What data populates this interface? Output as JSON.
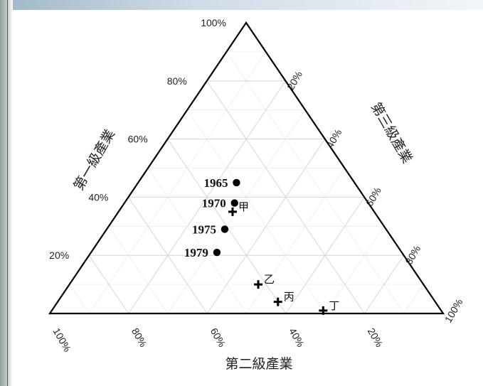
{
  "chart_data": {
    "type": "scatter",
    "subtype": "ternary",
    "title": "",
    "axes": {
      "primary": {
        "label": "第一級產業",
        "ticks": [
          "20%",
          "40%",
          "60%",
          "80%",
          "100%"
        ]
      },
      "secondary": {
        "label": "第二級產業",
        "ticks": [
          "100%",
          "80%",
          "60%",
          "40%",
          "20%"
        ]
      },
      "tertiary": {
        "label": "第三級產業",
        "ticks": [
          "20%",
          "40%",
          "60%",
          "80%",
          "100%"
        ]
      }
    },
    "grid": true,
    "series": [
      {
        "name": "",
        "marker": "dot",
        "points": [
          {
            "label": "1965",
            "primary": 45,
            "secondary": 30,
            "tertiary": 25
          },
          {
            "label": "1970",
            "primary": 38,
            "secondary": 34,
            "tertiary": 28
          },
          {
            "label": "1975",
            "primary": 29,
            "secondary": 41,
            "tertiary": 30
          },
          {
            "label": "1979",
            "primary": 21,
            "secondary": 47,
            "tertiary": 32
          }
        ]
      },
      {
        "name": "",
        "marker": "cross",
        "points": [
          {
            "label": "甲",
            "primary": 35,
            "secondary": 36,
            "tertiary": 29
          },
          {
            "label": "乙",
            "primary": 10,
            "secondary": 42,
            "tertiary": 48
          },
          {
            "label": "丙",
            "primary": 4,
            "secondary": 40,
            "tertiary": 56
          },
          {
            "label": "丁",
            "primary": 1,
            "secondary": 30,
            "tertiary": 69
          }
        ]
      }
    ]
  }
}
